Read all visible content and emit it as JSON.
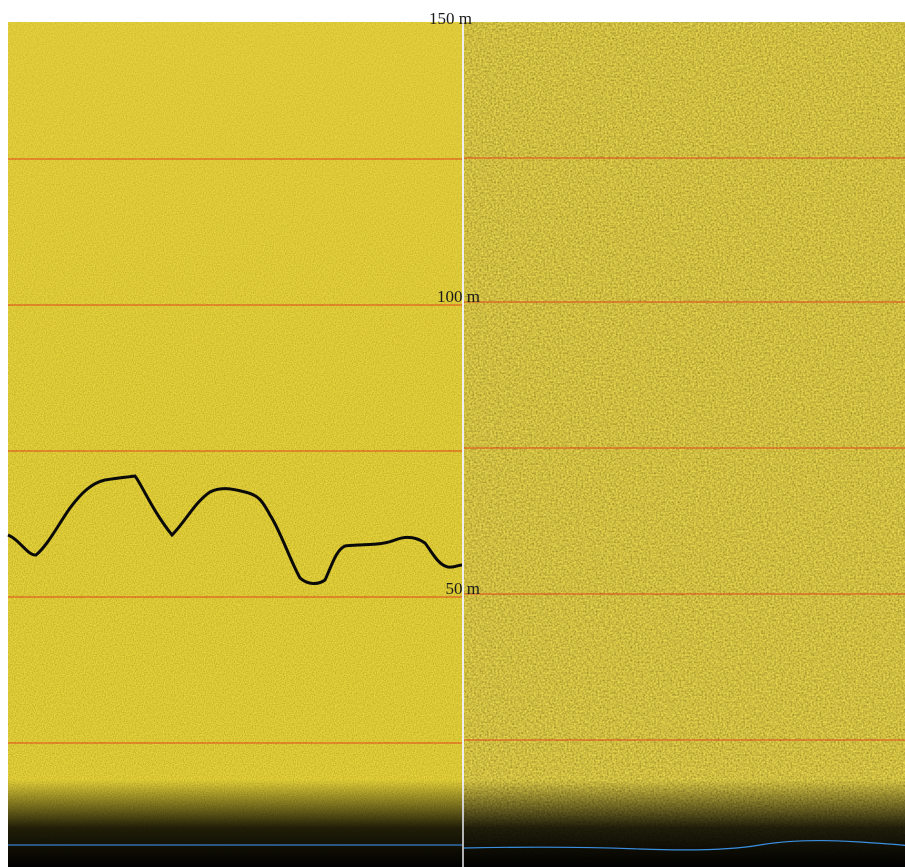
{
  "range_labels": [
    "150 m",
    "100 m",
    "50 m"
  ]
}
